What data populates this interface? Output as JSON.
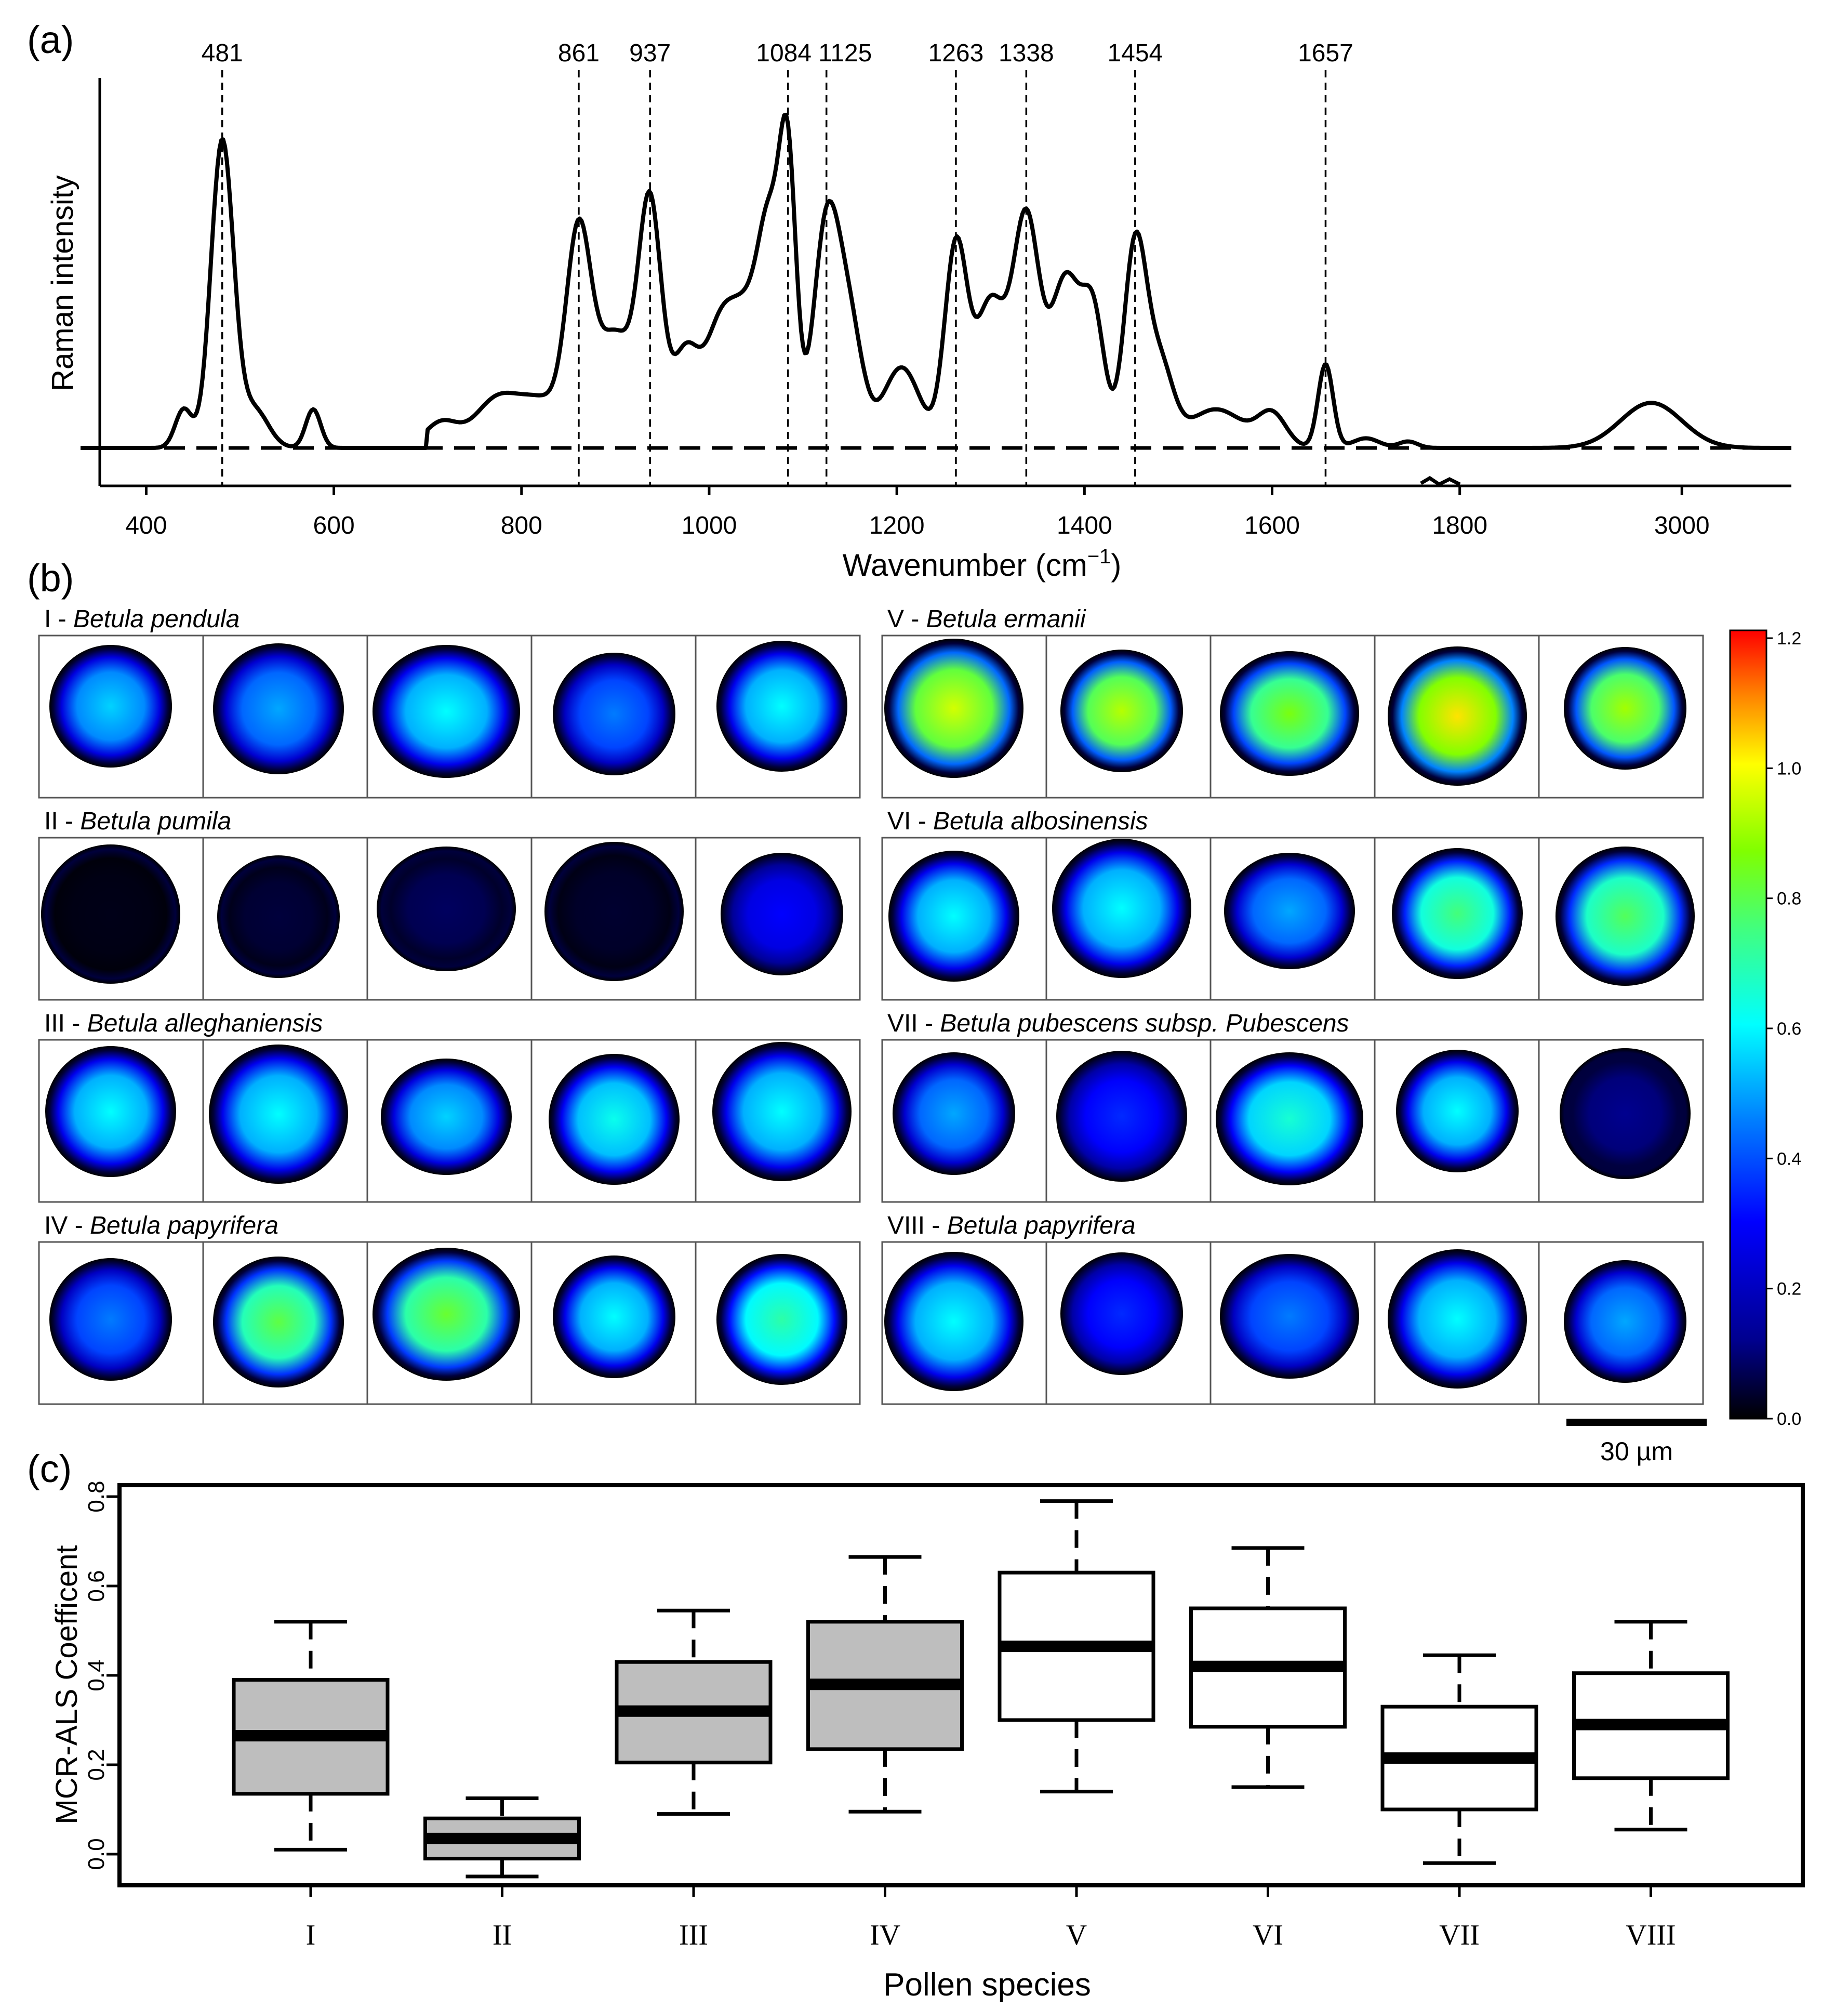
{
  "panel_a": {
    "label": "(a)",
    "ylabel": "Raman intensity",
    "xlabel": "Wavenumber (cm",
    "xlabel_sup": "−1",
    "xlabel_close": ")",
    "peaks": [
      "481",
      "861",
      "937",
      "1084",
      "1125",
      "1263",
      "1338",
      "1454",
      "1657"
    ],
    "ticks": [
      "400",
      "600",
      "800",
      "1000",
      "1200",
      "1400",
      "1600",
      "1800",
      "3000"
    ]
  },
  "panel_b": {
    "label": "(b)",
    "groups": [
      {
        "num": "I - ",
        "name": "Betula pendula"
      },
      {
        "num": "II - ",
        "name": "Betula pumila"
      },
      {
        "num": "III - ",
        "name": "Betula alleghaniensis"
      },
      {
        "num": "IV - ",
        "name": "Betula papyrifera"
      },
      {
        "num": "V - ",
        "name": "Betula ermanii"
      },
      {
        "num": "VI - ",
        "name": "Betula albosinensis"
      },
      {
        "num": "VII - ",
        "name": "Betula pubescens subsp. Pubescens"
      },
      {
        "num": "VIII - ",
        "name": "Betula papyrifera"
      }
    ],
    "intensities": [
      [
        0.55,
        0.5,
        0.6,
        0.45,
        0.6
      ],
      [
        0.02,
        0.05,
        0.08,
        0.04,
        0.3
      ],
      [
        0.6,
        0.6,
        0.55,
        0.62,
        0.6
      ],
      [
        0.45,
        0.8,
        0.82,
        0.6,
        0.7
      ],
      [
        0.95,
        0.92,
        0.85,
        1.02,
        0.9
      ],
      [
        0.6,
        0.6,
        0.5,
        0.75,
        0.78
      ],
      [
        0.5,
        0.35,
        0.65,
        0.6,
        0.12
      ],
      [
        0.6,
        0.35,
        0.45,
        0.6,
        0.5
      ]
    ],
    "colorbar_ticks": [
      "1.2",
      "1.0",
      "0.8",
      "0.6",
      "0.4",
      "0.2",
      "0.0"
    ],
    "scalebar": "30 µm"
  },
  "chart_data": {
    "type": "box",
    "title": "",
    "label": "(c)",
    "xlabel": "Pollen species",
    "ylabel": "MCR-ALS Coefficent",
    "ylim": [
      -0.08,
      0.84
    ],
    "yticks": [
      "0.0",
      "0.2",
      "0.4",
      "0.6",
      "0.8"
    ],
    "categories": [
      "I",
      "II",
      "III",
      "IV",
      "V",
      "VI",
      "VII",
      "VIII"
    ],
    "fill": [
      "#bebebe",
      "#bebebe",
      "#bebebe",
      "#bebebe",
      "#ffffff",
      "#ffffff",
      "#ffffff",
      "#ffffff"
    ],
    "whisker_low": [
      0.01,
      -0.05,
      0.09,
      0.095,
      0.14,
      0.15,
      -0.02,
      0.055
    ],
    "q1": [
      0.135,
      -0.01,
      0.205,
      0.235,
      0.3,
      0.285,
      0.1,
      0.17
    ],
    "median": [
      0.265,
      0.035,
      0.32,
      0.38,
      0.465,
      0.42,
      0.215,
      0.29
    ],
    "q3": [
      0.39,
      0.08,
      0.43,
      0.52,
      0.63,
      0.55,
      0.33,
      0.405
    ],
    "whisker_high": [
      0.52,
      0.125,
      0.545,
      0.665,
      0.79,
      0.685,
      0.445,
      0.52
    ]
  }
}
